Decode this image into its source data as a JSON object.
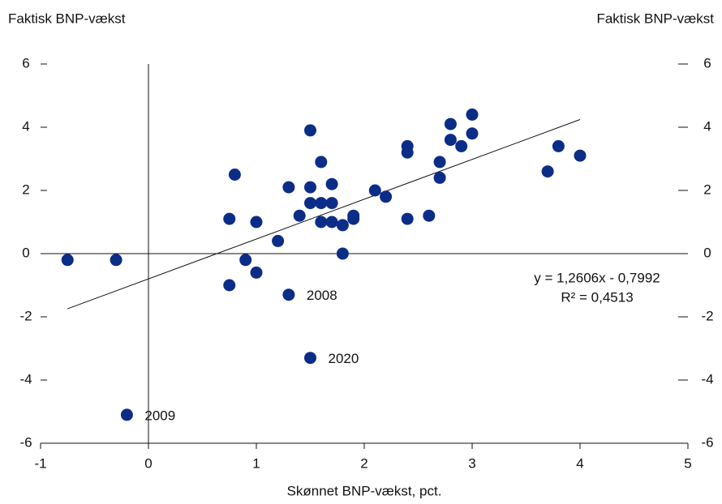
{
  "chart_data": {
    "type": "scatter",
    "y_label": "Faktisk BNP-vækst",
    "y2_label": "Faktisk BNP-vækst",
    "x_label": "Skønnet BNP-vækst, pct.",
    "color": "#0b2d87",
    "x": [
      -0.75,
      -0.3,
      -0.2,
      0.75,
      0.8,
      0.75,
      0.9,
      1.0,
      1.0,
      1.2,
      1.3,
      1.3,
      1.4,
      1.5,
      1.5,
      1.5,
      1.5,
      1.6,
      1.6,
      1.6,
      1.7,
      1.7,
      1.7,
      1.8,
      1.8,
      1.9,
      1.9,
      2.1,
      2.2,
      2.4,
      2.4,
      2.4,
      2.6,
      2.7,
      2.7,
      2.8,
      2.8,
      2.9,
      3.0,
      3.0,
      3.7,
      3.8,
      4.0
    ],
    "values": [
      -0.2,
      -0.2,
      -5.1,
      1.1,
      2.5,
      -1.0,
      -0.2,
      1.0,
      -0.6,
      0.4,
      2.1,
      -1.3,
      1.2,
      3.9,
      2.1,
      1.6,
      -3.3,
      2.9,
      1.6,
      1.0,
      2.2,
      1.6,
      1.0,
      0.9,
      0.0,
      1.2,
      1.1,
      2.0,
      1.8,
      3.4,
      3.2,
      1.1,
      1.2,
      2.9,
      2.4,
      4.1,
      3.6,
      3.4,
      4.4,
      3.8,
      2.6,
      3.4,
      3.1
    ],
    "labels": [
      null,
      null,
      "2009",
      null,
      null,
      null,
      null,
      null,
      null,
      null,
      null,
      "2008",
      null,
      null,
      null,
      null,
      "2020",
      null,
      null,
      null,
      null,
      null,
      null,
      null,
      null,
      null,
      null,
      null,
      null,
      null,
      null,
      null,
      null,
      null,
      null,
      null,
      null,
      null,
      null,
      null,
      null,
      null,
      null
    ],
    "trendline": {
      "x": [
        -0.75,
        4.0
      ],
      "y": [
        -1.745,
        4.243
      ],
      "equation": "y = 1,2606x - 0,7992",
      "r_squared": "R² = 0,4513"
    },
    "xlim": [
      -1,
      5
    ],
    "xticks": [
      -1,
      0,
      1,
      2,
      3,
      4,
      5
    ],
    "ylim": [
      -6,
      6
    ],
    "yticks": [
      -6,
      -4,
      -2,
      0,
      2,
      4,
      6
    ],
    "y2lim": [
      -6,
      6
    ],
    "y2ticks": [
      -6,
      -4,
      -2,
      0,
      2,
      4,
      6
    ]
  }
}
